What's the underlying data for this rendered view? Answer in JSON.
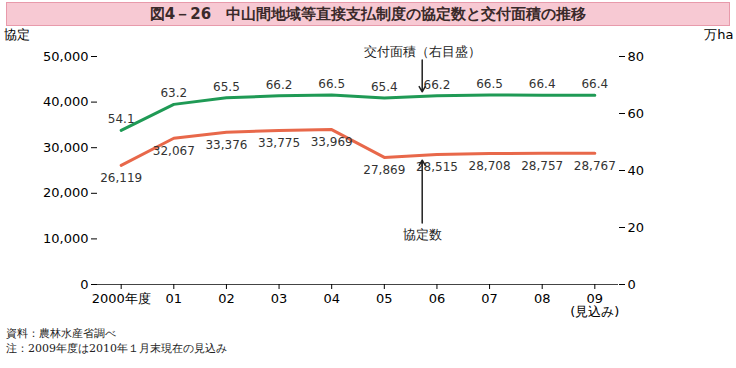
{
  "chart_data": {
    "type": "line",
    "title": "図4－26　中山間地域等直接支払制度の協定数と交付面積の推移",
    "categories": [
      "2000年度",
      "01",
      "02",
      "03",
      "04",
      "05",
      "06",
      "07",
      "08",
      "09\n(見込み)"
    ],
    "series": [
      {
        "name": "交付面積（右目盛）",
        "color": "#1f9a55",
        "axis": "y2",
        "values": [
          54.1,
          63.2,
          65.5,
          66.2,
          66.5,
          65.4,
          66.2,
          66.5,
          66.4,
          66.4
        ]
      },
      {
        "name": "協定数",
        "color": "#e8684a",
        "values": [
          26119,
          32067,
          33376,
          33775,
          33969,
          27869,
          28515,
          28708,
          28757,
          28767
        ],
        "value_labels": [
          "26,119",
          "32,067",
          "33,376",
          "33,775",
          "33,969",
          "27,869",
          "28,515",
          "28,708",
          "28,757",
          "28,767"
        ]
      }
    ],
    "y_label": "協定",
    "y2_label": "万ha",
    "ylim": [
      0,
      50000
    ],
    "yticks": [
      0,
      {
        "value": 10000,
        "label": "10,000"
      },
      {
        "value": 20000,
        "label": "20,000"
      },
      {
        "value": 30000,
        "label": "30,000"
      },
      {
        "value": 40000,
        "label": "40,000"
      },
      {
        "value": 50000,
        "label": "50,000"
      }
    ],
    "y2lim": [
      0,
      80
    ],
    "y2ticks": [
      0,
      20,
      40,
      60,
      80
    ],
    "data_labels": true,
    "grid": false,
    "notes": [
      "資料：農林水産省調べ",
      "注：2009年度は2010年１月末現在の見込み"
    ]
  }
}
